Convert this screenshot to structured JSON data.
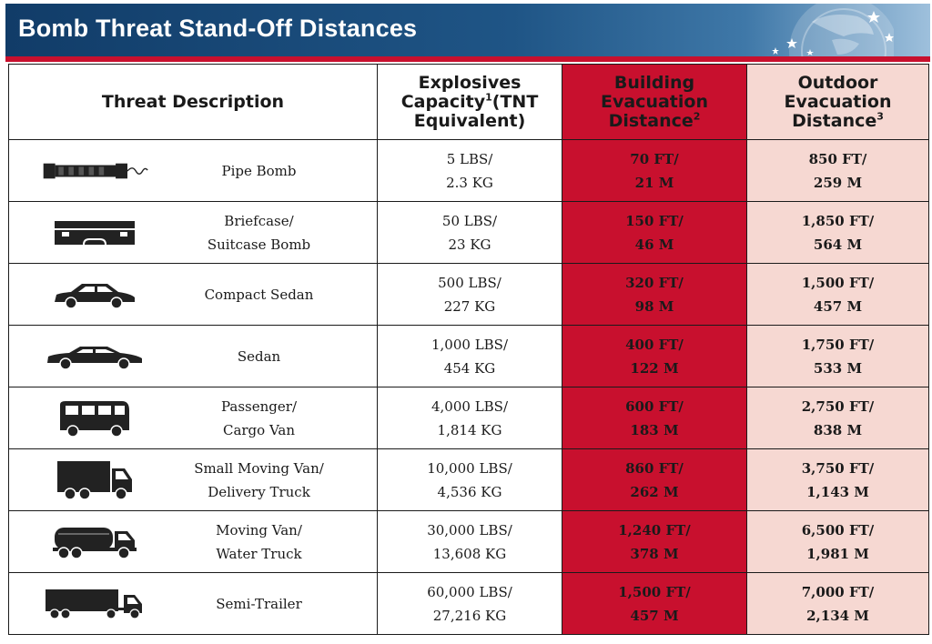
{
  "title": "Bomb Threat Stand-Off Distances",
  "headers": {
    "threat": "Threat Description",
    "capacity_line1": "Explosives",
    "capacity_line2a": "Capacity",
    "capacity_note": "1",
    "capacity_line2b": "(TNT",
    "capacity_line3": "Equivalent)",
    "building_line1": "Building",
    "building_line2": "Evacuation",
    "building_line3": "Distance",
    "building_note": "2",
    "outdoor_line1": "Outdoor",
    "outdoor_line2": "Evacuation",
    "outdoor_line3": "Distance",
    "outdoor_note": "3"
  },
  "rows": [
    {
      "icon": "pipe-bomb-icon",
      "threat1": "Pipe Bomb",
      "threat2": "",
      "cap1": "5 LBS/",
      "cap2": "2.3 KG",
      "bld1": "70 FT/",
      "bld2": "21 M",
      "out1": "850 FT/",
      "out2": "259 M"
    },
    {
      "icon": "briefcase-icon",
      "threat1": "Briefcase/",
      "threat2": "Suitcase Bomb",
      "cap1": "50 LBS/",
      "cap2": "23 KG",
      "bld1": "150 FT/",
      "bld2": "46 M",
      "out1": "1,850 FT/",
      "out2": "564 M"
    },
    {
      "icon": "compact-sedan-icon",
      "threat1": "Compact Sedan",
      "threat2": "",
      "cap1": "500 LBS/",
      "cap2": "227 KG",
      "bld1": "320 FT/",
      "bld2": "98 M",
      "out1": "1,500 FT/",
      "out2": "457 M"
    },
    {
      "icon": "sedan-icon",
      "threat1": "Sedan",
      "threat2": "",
      "cap1": "1,000 LBS/",
      "cap2": "454 KG",
      "bld1": "400 FT/",
      "bld2": "122 M",
      "out1": "1,750 FT/",
      "out2": "533 M"
    },
    {
      "icon": "van-icon",
      "threat1": "Passenger/",
      "threat2": "Cargo Van",
      "cap1": "4,000 LBS/",
      "cap2": "1,814 KG",
      "bld1": "600 FT/",
      "bld2": "183 M",
      "out1": "2,750 FT/",
      "out2": "838 M"
    },
    {
      "icon": "box-truck-icon",
      "threat1": "Small Moving Van/",
      "threat2": "Delivery Truck",
      "cap1": "10,000 LBS/",
      "cap2": "4,536 KG",
      "bld1": "860 FT/",
      "bld2": "262 M",
      "out1": "3,750 FT/",
      "out2": "1,143 M"
    },
    {
      "icon": "tanker-truck-icon",
      "threat1": "Moving Van/",
      "threat2": "Water Truck",
      "cap1": "30,000 LBS/",
      "cap2": "13,608 KG",
      "bld1": "1,240 FT/",
      "bld2": "378 M",
      "out1": "6,500 FT/",
      "out2": "1,981 M"
    },
    {
      "icon": "semi-trailer-icon",
      "threat1": "Semi-Trailer",
      "threat2": "",
      "cap1": "60,000 LBS/",
      "cap2": "27,216 KG",
      "bld1": "1,500 FT/",
      "bld2": "457 M",
      "out1": "7,000 FT/",
      "out2": "2,134 M"
    }
  ]
}
